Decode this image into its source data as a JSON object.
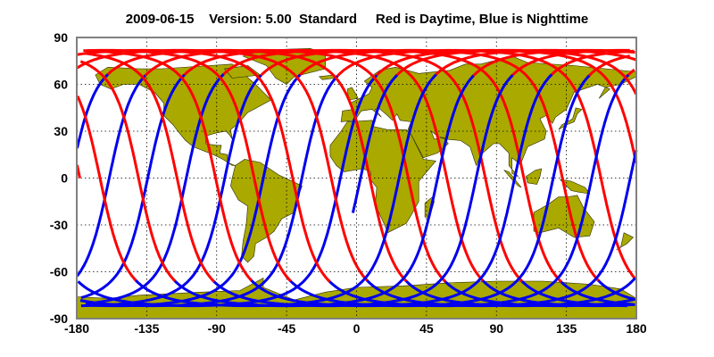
{
  "chart_data": {
    "type": "map",
    "title": "2009-06-15    Version: 5.00  Standard     Red is Daytime, Blue is Nighttime",
    "xlim": [
      -180,
      180
    ],
    "ylim": [
      -90,
      90
    ],
    "xticks": [
      "-180",
      "-135",
      "-90",
      "-45",
      "0",
      "45",
      "90",
      "135",
      "180"
    ],
    "yticks": [
      "90",
      "60",
      "30",
      "0",
      "-30",
      "-60",
      "-90"
    ],
    "grid": true,
    "colors": {
      "daytime": "#ff0000",
      "nighttime": "#0000ee",
      "land": "#a9a900",
      "frame": "#808080"
    }
  }
}
